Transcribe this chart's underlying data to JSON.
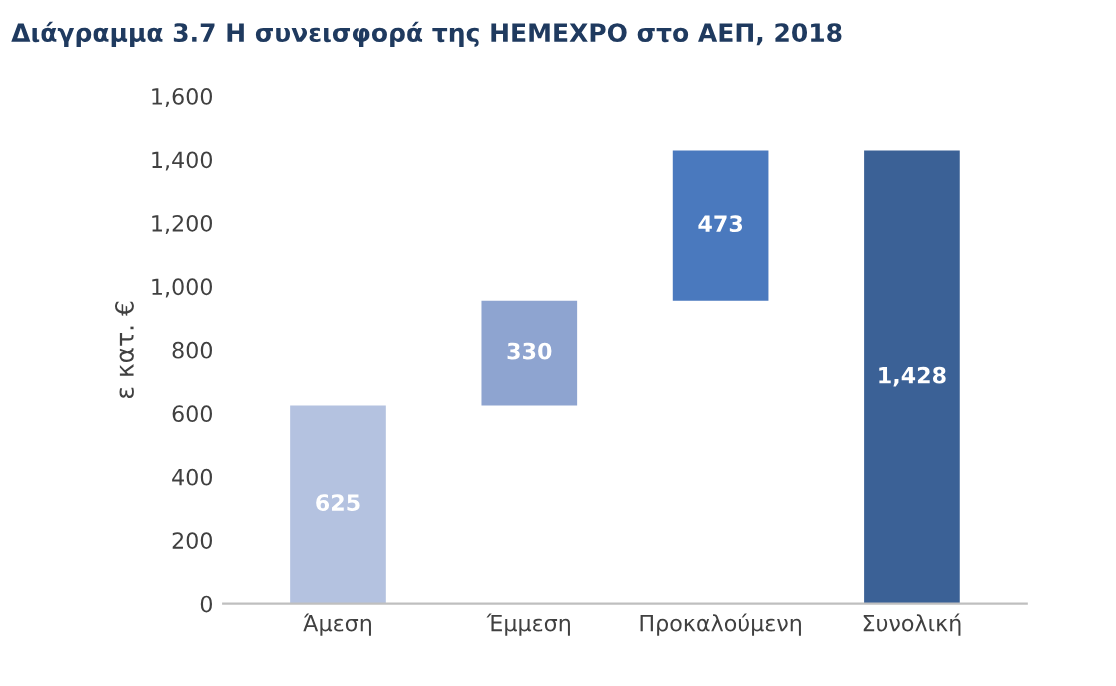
{
  "chart_data": {
    "type": "bar",
    "title": "Διάγραμμα 3.7 Η συνεισφορά της HEMEXPO στο ΑΕΠ, 2018",
    "ylabel": "ε κατ. €",
    "categories": [
      "Άμεση",
      "Έμμεση",
      "Προκαλούμενη",
      "Συνολική"
    ],
    "values": [
      625,
      330,
      473,
      1428
    ],
    "base": [
      0,
      625,
      955,
      0
    ],
    "colors": [
      "#b4c2e0",
      "#8ea4d0",
      "#4a79be",
      "#3b6196"
    ],
    "value_labels": [
      "625",
      "330",
      "473",
      "1,428"
    ],
    "ylim": [
      0,
      1600
    ],
    "yticks": [
      0,
      200,
      400,
      600,
      800,
      {
        "value": 1000,
        "label": "1,000"
      },
      {
        "value": 1200,
        "label": "1,200"
      },
      {
        "value": 1400,
        "label": "1,400"
      },
      {
        "value": 1600,
        "label": "1,600"
      }
    ],
    "grid": false,
    "legend": false
  }
}
